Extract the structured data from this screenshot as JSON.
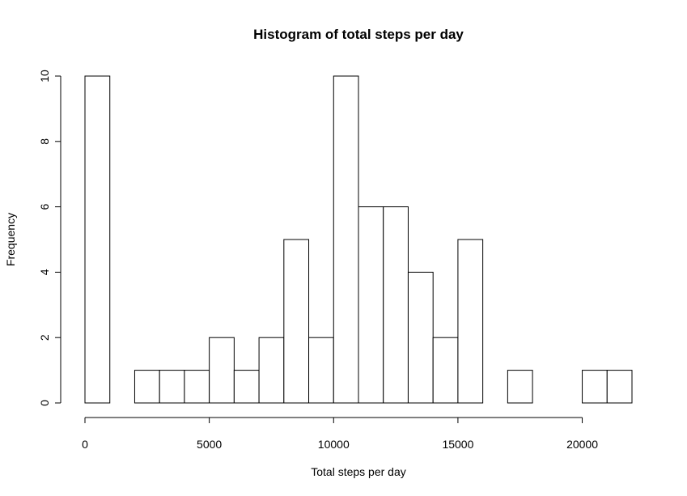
{
  "chart_data": {
    "type": "bar",
    "title": "Histogram of total steps per day",
    "xlabel": "Total steps per day",
    "ylabel": "Frequency",
    "bins": [
      {
        "from": 0,
        "to": 1000,
        "count": 10
      },
      {
        "from": 1000,
        "to": 2000,
        "count": 0
      },
      {
        "from": 2000,
        "to": 3000,
        "count": 1
      },
      {
        "from": 3000,
        "to": 4000,
        "count": 1
      },
      {
        "from": 4000,
        "to": 5000,
        "count": 1
      },
      {
        "from": 5000,
        "to": 6000,
        "count": 2
      },
      {
        "from": 6000,
        "to": 7000,
        "count": 1
      },
      {
        "from": 7000,
        "to": 8000,
        "count": 2
      },
      {
        "from": 8000,
        "to": 9000,
        "count": 5
      },
      {
        "from": 9000,
        "to": 10000,
        "count": 2
      },
      {
        "from": 10000,
        "to": 11000,
        "count": 10
      },
      {
        "from": 11000,
        "to": 12000,
        "count": 6
      },
      {
        "from": 12000,
        "to": 13000,
        "count": 6
      },
      {
        "from": 13000,
        "to": 14000,
        "count": 4
      },
      {
        "from": 14000,
        "to": 15000,
        "count": 2
      },
      {
        "from": 15000,
        "to": 16000,
        "count": 5
      },
      {
        "from": 16000,
        "to": 17000,
        "count": 0
      },
      {
        "from": 17000,
        "to": 18000,
        "count": 1
      },
      {
        "from": 18000,
        "to": 19000,
        "count": 0
      },
      {
        "from": 19000,
        "to": 20000,
        "count": 0
      },
      {
        "from": 20000,
        "to": 21000,
        "count": 1
      },
      {
        "from": 21000,
        "to": 22000,
        "count": 1
      }
    ],
    "xticks": [
      "0",
      "5000",
      "10000",
      "15000",
      "20000"
    ],
    "yticks": [
      "0",
      "2",
      "4",
      "6",
      "8",
      "10"
    ],
    "xlim": [
      0,
      22000
    ],
    "ylim": [
      0,
      10
    ],
    "grid": false,
    "fill_color": "#ffffff",
    "stroke_color": "#000000"
  }
}
